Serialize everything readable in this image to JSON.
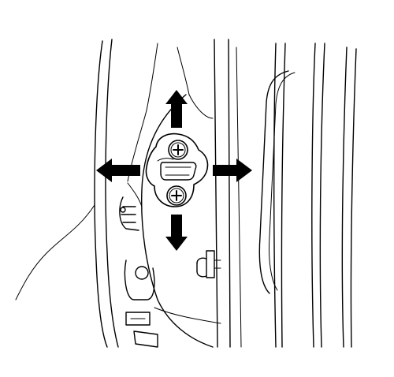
{
  "figure": {
    "subject": "door-striker-adjustment",
    "arrow_directions": [
      "up",
      "down",
      "left",
      "right"
    ],
    "colors": {
      "line": "#000000",
      "background": "#ffffff",
      "arrow_fill": "#000000"
    },
    "icons": [
      "arrow-up-icon",
      "arrow-down-icon",
      "arrow-left-icon",
      "arrow-right-icon",
      "phillips-screw-icon"
    ]
  }
}
